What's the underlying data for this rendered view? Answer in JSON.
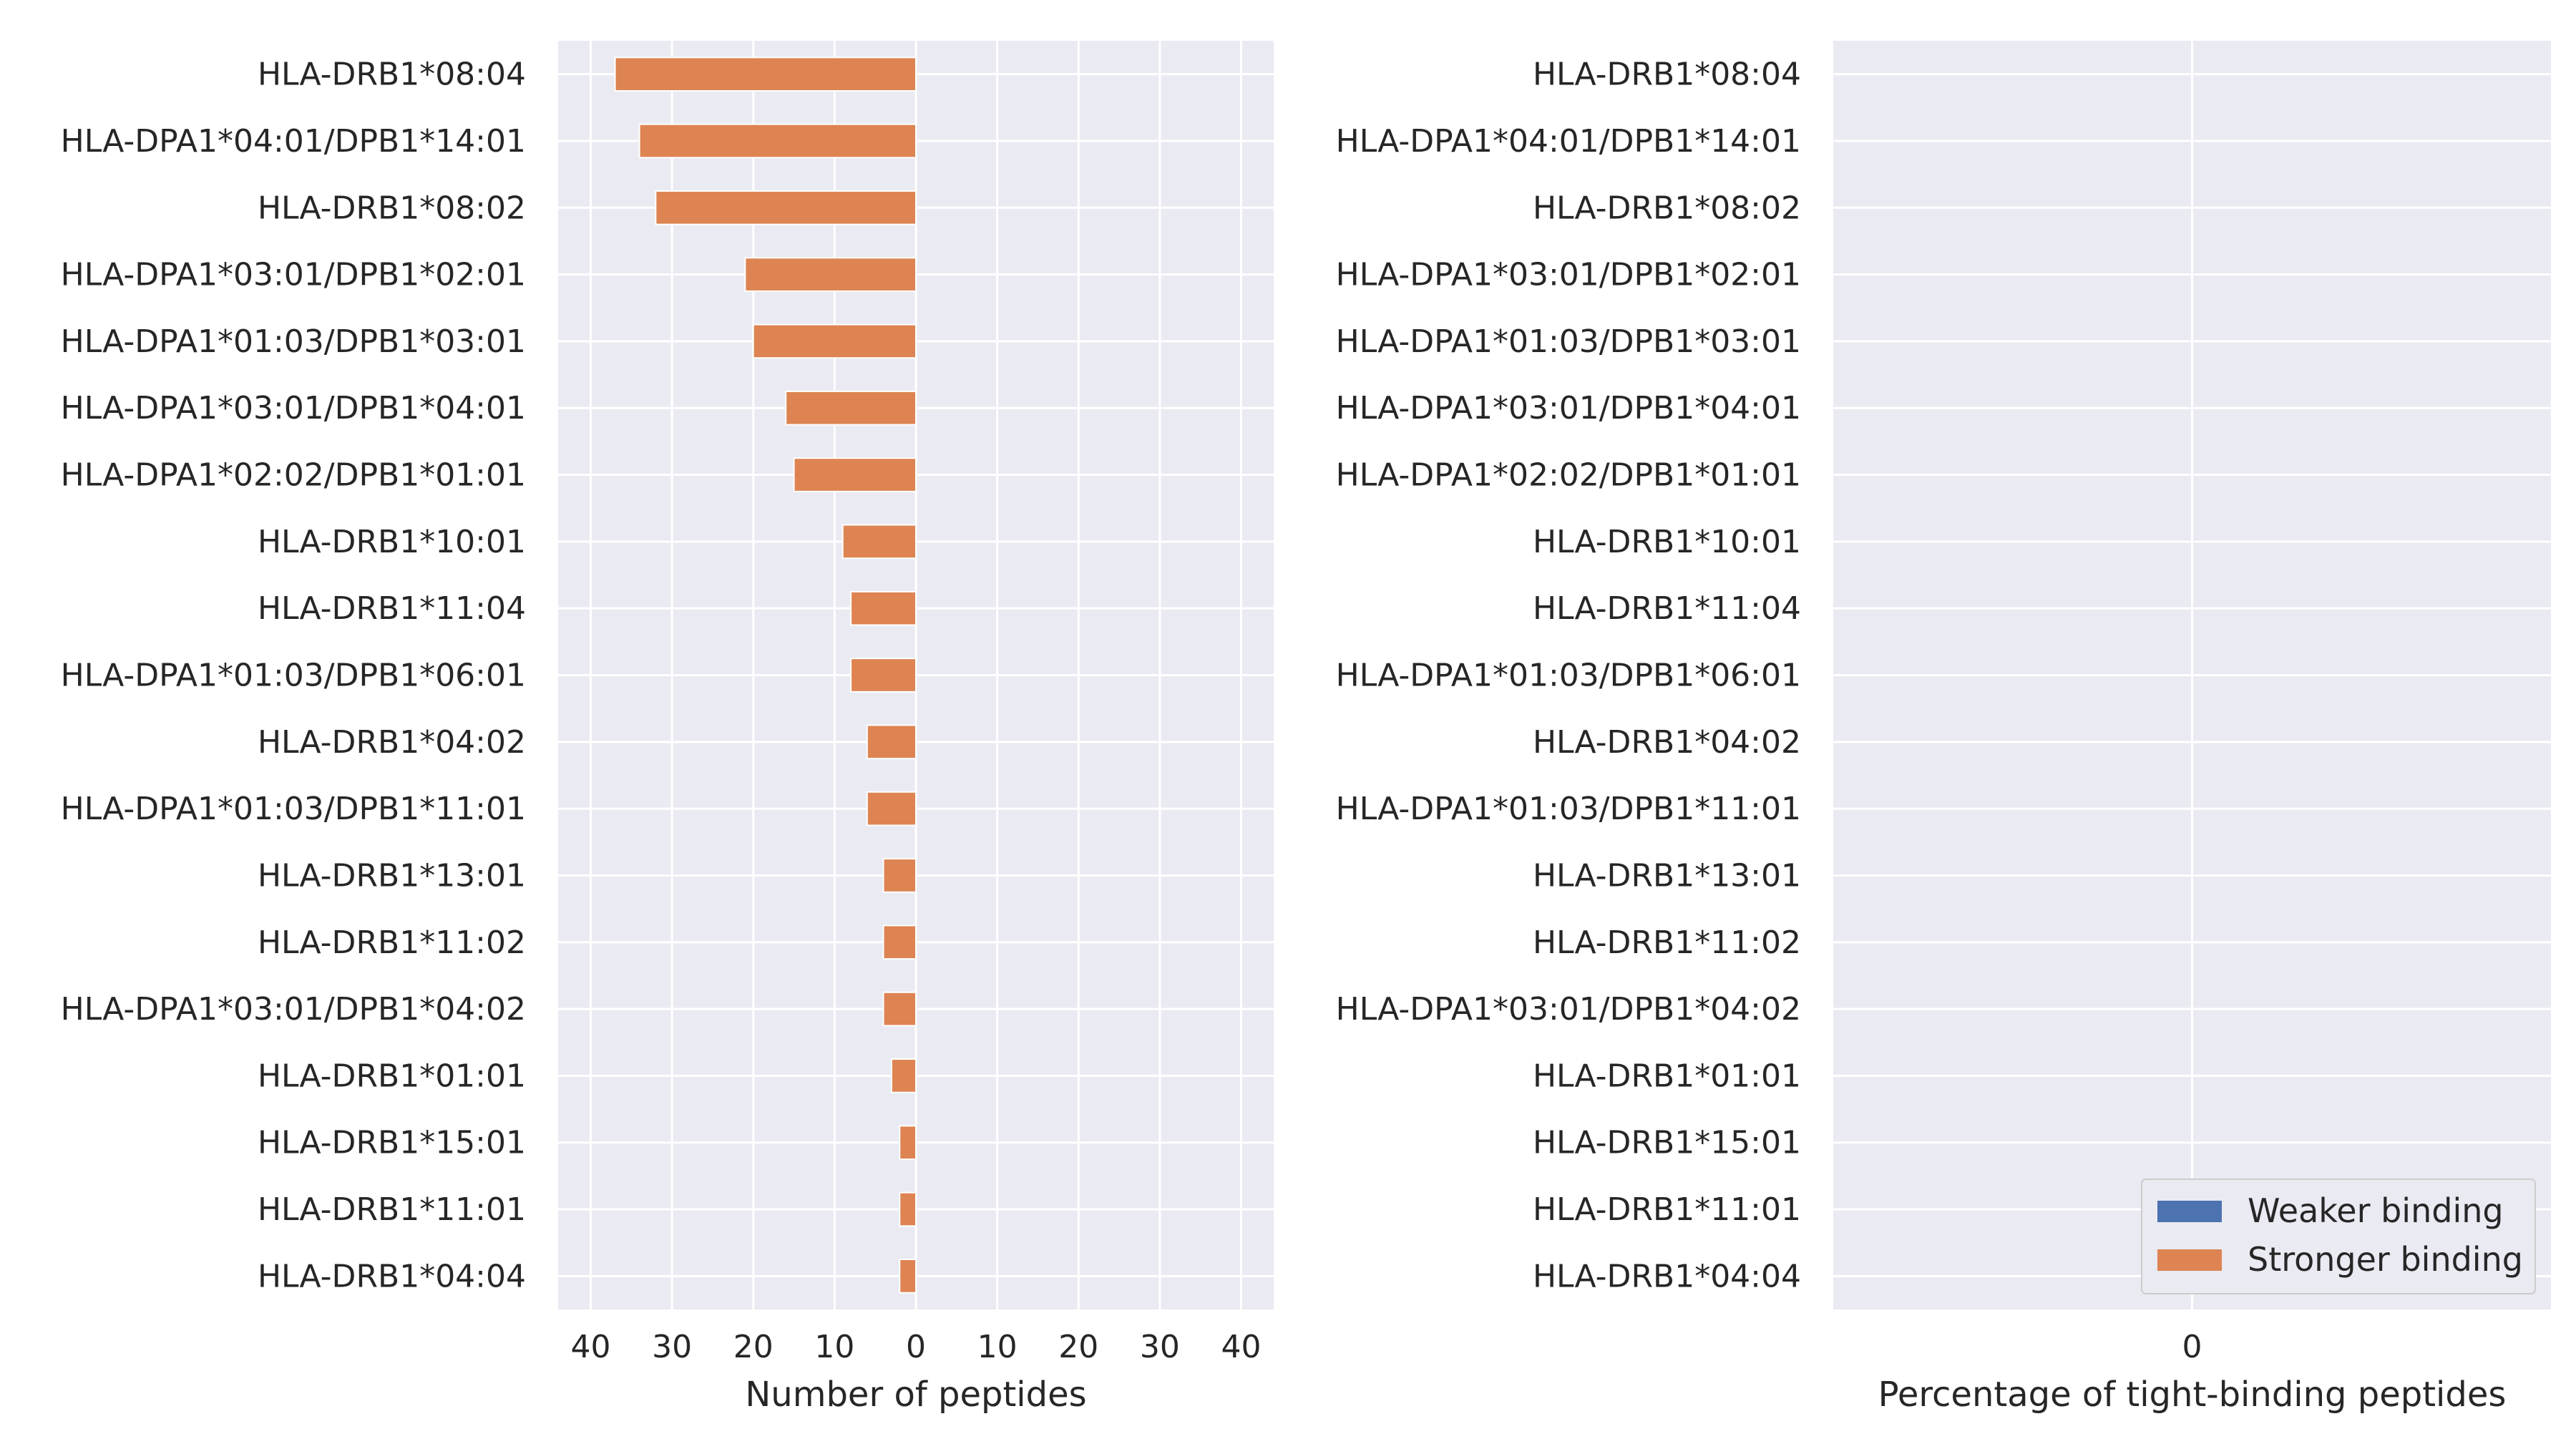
{
  "chart_data": [
    {
      "type": "bar",
      "orientation": "horizontal",
      "categories": [
        "HLA-DRB1*08:04",
        "HLA-DPA1*04:01/DPB1*14:01",
        "HLA-DRB1*08:02",
        "HLA-DPA1*03:01/DPB1*02:01",
        "HLA-DPA1*01:03/DPB1*03:01",
        "HLA-DPA1*03:01/DPB1*04:01",
        "HLA-DPA1*02:02/DPB1*01:01",
        "HLA-DRB1*10:01",
        "HLA-DRB1*11:04",
        "HLA-DPA1*01:03/DPB1*06:01",
        "HLA-DRB1*04:02",
        "HLA-DPA1*01:03/DPB1*11:01",
        "HLA-DRB1*13:01",
        "HLA-DRB1*11:02",
        "HLA-DPA1*03:01/DPB1*04:02",
        "HLA-DRB1*01:01",
        "HLA-DRB1*15:01",
        "HLA-DRB1*11:01",
        "HLA-DRB1*04:04"
      ],
      "series": [
        {
          "name": "Weaker binding",
          "color": "#4c72b0",
          "values": [
            0,
            0,
            0,
            0,
            0,
            0,
            0,
            0,
            0,
            0,
            0,
            0,
            0,
            0,
            0,
            0,
            0,
            0,
            0
          ]
        },
        {
          "name": "Stronger binding",
          "color": "#dd8452",
          "values": [
            37,
            34,
            32,
            21,
            20,
            16,
            15,
            9,
            8,
            8,
            6,
            6,
            4,
            4,
            4,
            3,
            2,
            2,
            2
          ]
        }
      ],
      "direction": "leftward from zero",
      "xlabel": "Number of peptides",
      "xlim": [
        -44,
        44
      ],
      "xticks": [
        -40,
        -30,
        -20,
        -10,
        0,
        10,
        20,
        30,
        40
      ],
      "xtick_labels": [
        "40",
        "30",
        "20",
        "10",
        "0",
        "10",
        "20",
        "30",
        "40"
      ],
      "grid": true,
      "background": "#eaeaf2"
    },
    {
      "type": "bar",
      "orientation": "horizontal",
      "categories": [
        "HLA-DRB1*08:04",
        "HLA-DPA1*04:01/DPB1*14:01",
        "HLA-DRB1*08:02",
        "HLA-DPA1*03:01/DPB1*02:01",
        "HLA-DPA1*01:03/DPB1*03:01",
        "HLA-DPA1*03:01/DPB1*04:01",
        "HLA-DPA1*02:02/DPB1*01:01",
        "HLA-DRB1*10:01",
        "HLA-DRB1*11:04",
        "HLA-DPA1*01:03/DPB1*06:01",
        "HLA-DRB1*04:02",
        "HLA-DPA1*01:03/DPB1*11:01",
        "HLA-DRB1*13:01",
        "HLA-DRB1*11:02",
        "HLA-DPA1*03:01/DPB1*04:02",
        "HLA-DRB1*01:01",
        "HLA-DRB1*15:01",
        "HLA-DRB1*11:01",
        "HLA-DRB1*04:04"
      ],
      "series": [
        {
          "name": "Weaker binding",
          "color": "#4c72b0",
          "values": [
            0,
            0,
            0,
            0,
            0,
            0,
            0,
            0,
            0,
            0,
            0,
            0,
            0,
            0,
            0,
            0,
            0,
            0,
            0
          ]
        },
        {
          "name": "Stronger binding",
          "color": "#dd8452",
          "values": [
            0,
            0,
            0,
            0,
            0,
            0,
            0,
            0,
            0,
            0,
            0,
            0,
            0,
            0,
            0,
            0,
            0,
            0,
            0
          ]
        }
      ],
      "xlabel": "Percentage of tight-binding peptides",
      "xlim": [
        -1,
        1
      ],
      "xticks": [
        0
      ],
      "xtick_labels": [
        "0"
      ],
      "grid": true,
      "legend": {
        "placement": "lower-right",
        "entries": [
          {
            "label": "Weaker binding",
            "color": "#4c72b0"
          },
          {
            "label": "Stronger binding",
            "color": "#dd8452"
          }
        ]
      },
      "background": "#eaeaf2"
    }
  ]
}
